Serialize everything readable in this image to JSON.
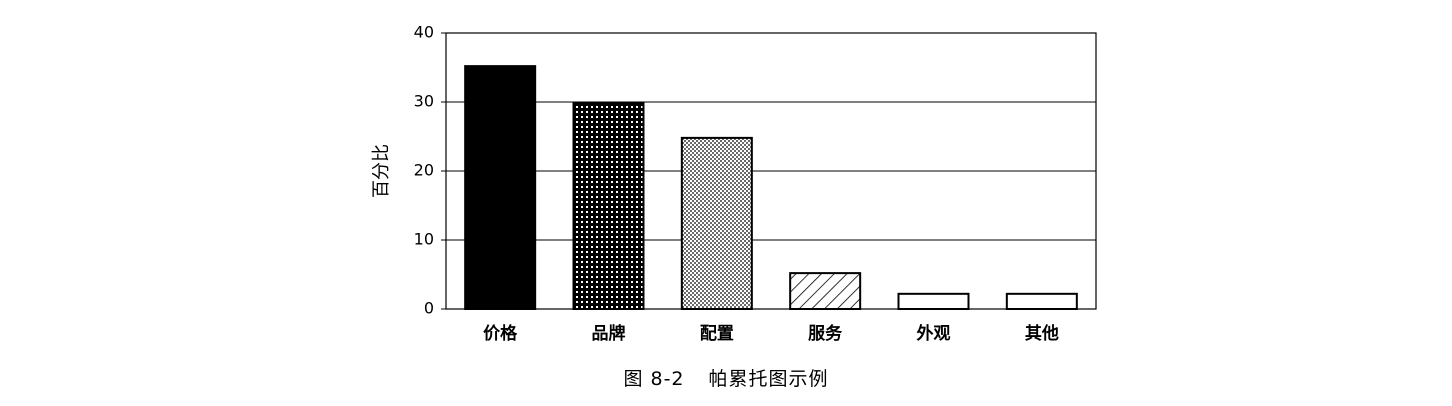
{
  "chart_data": {
    "type": "bar",
    "categories": [
      "价格",
      "品牌",
      "配置",
      "服务",
      "外观",
      "其他"
    ],
    "values": [
      35.2,
      29.8,
      24.8,
      5.2,
      2.2,
      2.2
    ],
    "ylabel": "百分比",
    "ylim": [
      0,
      40
    ],
    "yticks": [
      0,
      10,
      20,
      30,
      40
    ],
    "grid": true,
    "legend": false,
    "fills": [
      "solid",
      "dotted-dark",
      "dotted-light",
      "hatched",
      "white",
      "white"
    ]
  },
  "caption": {
    "figure_number": "图 8-2",
    "title": "帕累托图示例"
  }
}
